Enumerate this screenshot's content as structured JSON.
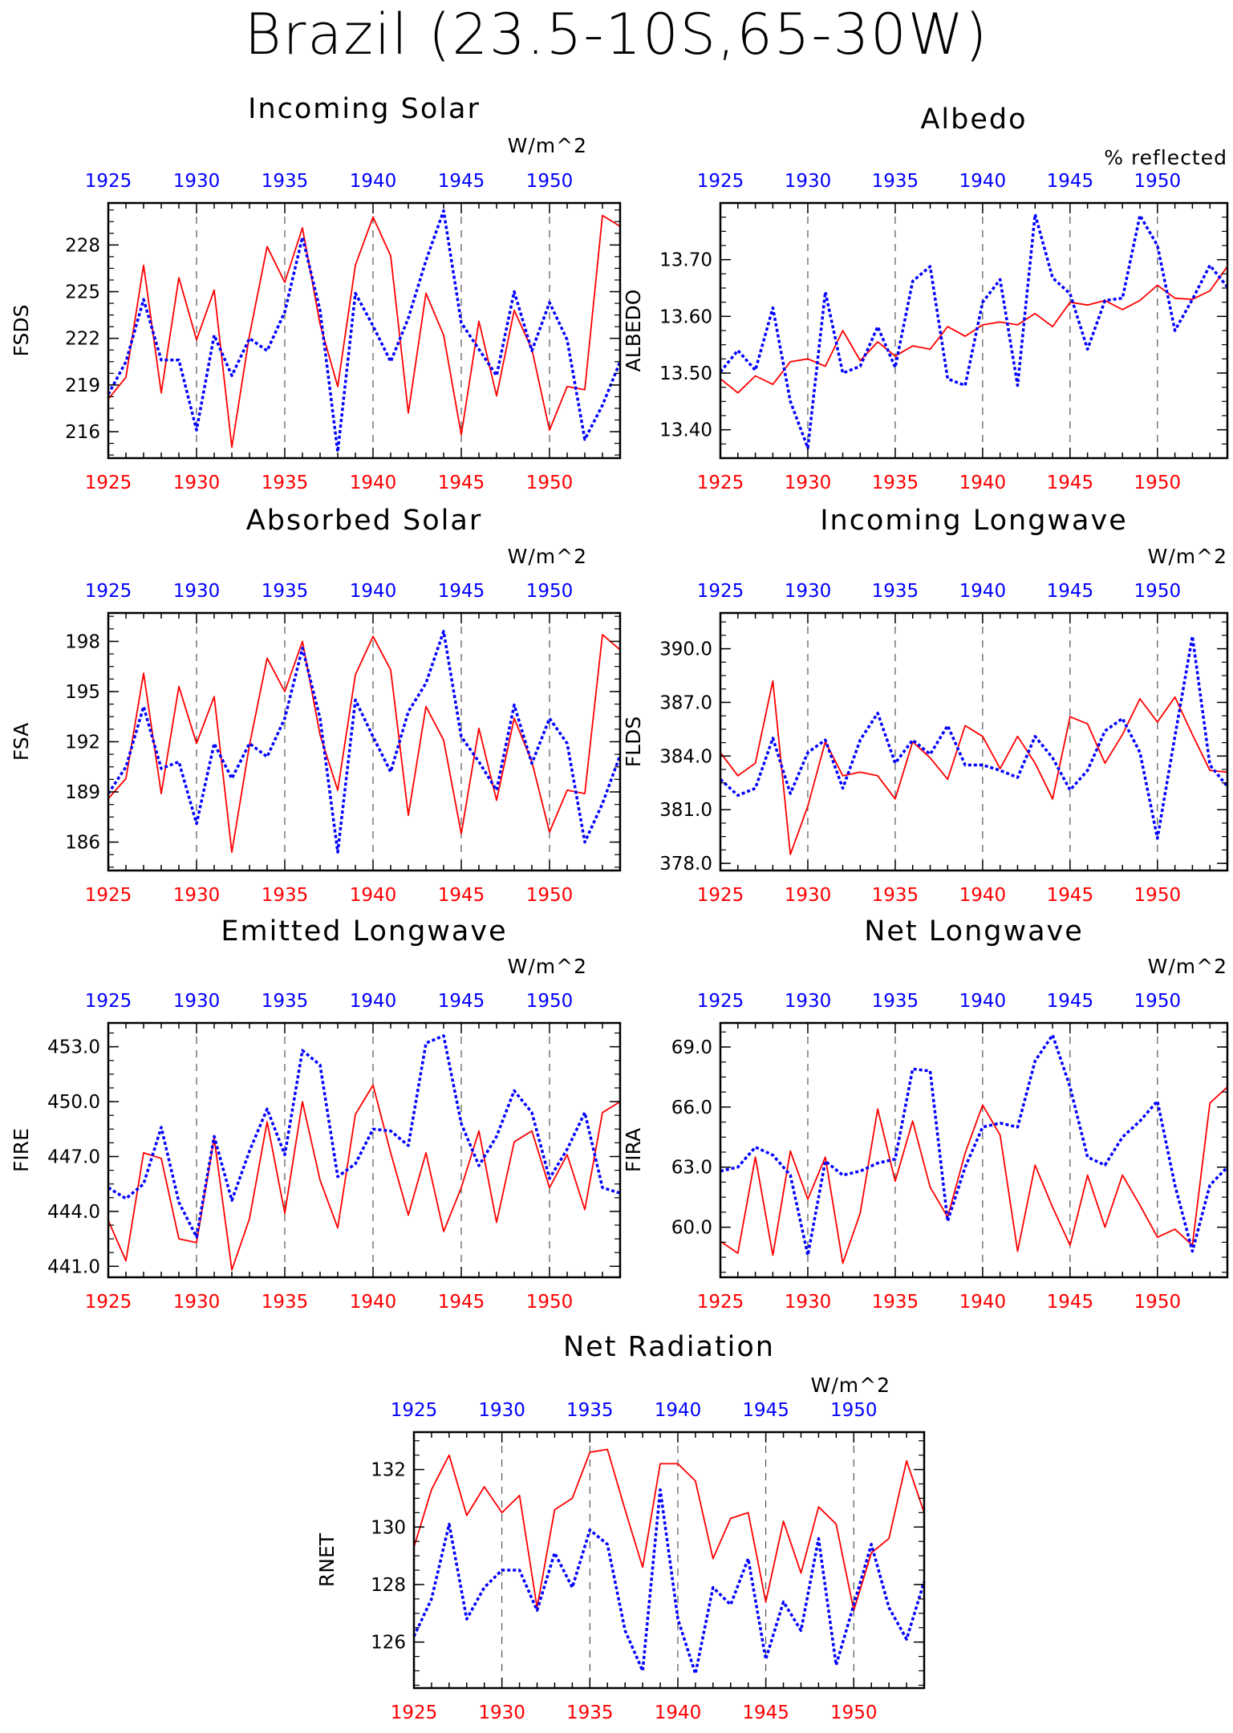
{
  "title": "Brazil (23.5-10S,65-30W)",
  "colors": {
    "series_red": "#ff0000",
    "series_blue": "#0000ff",
    "axis": "#000000"
  },
  "chart_data": [
    {
      "type": "line",
      "title": "Incoming Solar",
      "ylabel": "FSDS",
      "units": "W/m^2",
      "xlim": [
        1925,
        1954
      ],
      "ylim": [
        214.3,
        230.7
      ],
      "yticks": [
        "216",
        "219",
        "222",
        "225",
        "228"
      ],
      "x_red": [
        1925,
        1926,
        1927,
        1928,
        1929,
        1930,
        1931,
        1932,
        1933,
        1934,
        1935,
        1936,
        1937,
        1938,
        1939,
        1940,
        1941,
        1942,
        1943,
        1944,
        1945,
        1946,
        1947,
        1948,
        1949,
        1950,
        1951,
        1952,
        1953,
        1954
      ],
      "x_blue": [
        1925,
        1926,
        1927,
        1928,
        1929,
        1930,
        1931,
        1932,
        1933,
        1934,
        1935,
        1936,
        1937,
        1938,
        1939,
        1940,
        1941,
        1942,
        1943,
        1944,
        1945,
        1946,
        1947,
        1948,
        1949,
        1950,
        1951,
        1952,
        1953,
        1954
      ],
      "series": [
        {
          "values": [
            218.1,
            219.5,
            226.7,
            218.5,
            225.9,
            221.9,
            225.1,
            215.0,
            222.2,
            227.9,
            225.6,
            229.1,
            222.9,
            218.9,
            226.7,
            229.8,
            227.3,
            217.2,
            224.9,
            222.2,
            215.8,
            223.1,
            218.3,
            223.8,
            221.3,
            216.1,
            218.9,
            218.7,
            229.9,
            229.2
          ]
        },
        {
          "values": [
            218.4,
            220.5,
            224.5,
            220.6,
            220.6,
            216.1,
            222.2,
            219.6,
            222.0,
            221.2,
            223.7,
            228.5,
            223.8,
            214.7,
            224.9,
            222.8,
            220.5,
            223.3,
            227.0,
            230.2,
            223.0,
            221.3,
            219.6,
            225.0,
            221.2,
            224.3,
            221.9,
            215.5,
            217.7,
            220.5
          ]
        }
      ]
    },
    {
      "type": "line",
      "title": "Albedo",
      "ylabel": "ALBEDO",
      "units": "% reflected",
      "xlim": [
        1925,
        1954
      ],
      "ylim": [
        13.35,
        13.8
      ],
      "yticks": [
        "13.40",
        "13.50",
        "13.60",
        "13.70"
      ],
      "x_red": [
        1925,
        1926,
        1927,
        1928,
        1929,
        1930,
        1931,
        1932,
        1933,
        1934,
        1935,
        1936,
        1937,
        1938,
        1939,
        1940,
        1941,
        1942,
        1943,
        1944,
        1945,
        1946,
        1947,
        1948,
        1949,
        1950,
        1951,
        1952,
        1953,
        1954
      ],
      "x_blue": [
        1925,
        1926,
        1927,
        1928,
        1929,
        1930,
        1931,
        1932,
        1933,
        1934,
        1935,
        1936,
        1937,
        1938,
        1939,
        1940,
        1941,
        1942,
        1943,
        1944,
        1945,
        1946,
        1947,
        1948,
        1949,
        1950,
        1951,
        1952,
        1953,
        1954
      ],
      "series": [
        {
          "values": [
            13.49,
            13.465,
            13.495,
            13.48,
            13.52,
            13.525,
            13.512,
            13.575,
            13.522,
            13.555,
            13.53,
            13.548,
            13.542,
            13.582,
            13.565,
            13.585,
            13.59,
            13.585,
            13.605,
            13.582,
            13.625,
            13.62,
            13.628,
            13.612,
            13.628,
            13.655,
            13.632,
            13.63,
            13.645,
            13.688
          ]
        },
        {
          "values": [
            13.502,
            13.54,
            13.505,
            13.615,
            13.45,
            13.368,
            13.643,
            13.5,
            13.512,
            13.582,
            13.51,
            13.662,
            13.688,
            13.49,
            13.478,
            13.625,
            13.665,
            13.478,
            13.78,
            13.668,
            13.64,
            13.542,
            13.628,
            13.632,
            13.778,
            13.725,
            13.575,
            13.63,
            13.69,
            13.652
          ]
        }
      ]
    },
    {
      "type": "line",
      "title": "Absorbed Solar",
      "ylabel": "FSA",
      "units": "W/m^2",
      "xlim": [
        1925,
        1954
      ],
      "ylim": [
        184.3,
        199.7
      ],
      "yticks": [
        "186",
        "189",
        "192",
        "195",
        "198"
      ],
      "x_red": [
        1925,
        1926,
        1927,
        1928,
        1929,
        1930,
        1931,
        1932,
        1933,
        1934,
        1935,
        1936,
        1937,
        1938,
        1939,
        1940,
        1941,
        1942,
        1943,
        1944,
        1945,
        1946,
        1947,
        1948,
        1949,
        1950,
        1951,
        1952,
        1953,
        1954
      ],
      "x_blue": [
        1925,
        1926,
        1927,
        1928,
        1929,
        1930,
        1931,
        1932,
        1933,
        1934,
        1935,
        1936,
        1937,
        1938,
        1939,
        1940,
        1941,
        1942,
        1943,
        1944,
        1945,
        1946,
        1947,
        1948,
        1949,
        1950,
        1951,
        1952,
        1953,
        1954
      ],
      "series": [
        {
          "values": [
            188.6,
            189.8,
            196.1,
            188.9,
            195.3,
            191.9,
            194.7,
            185.4,
            191.8,
            197.0,
            195.0,
            198.0,
            192.4,
            189.1,
            196.0,
            198.3,
            196.3,
            187.6,
            194.1,
            192.1,
            186.5,
            192.8,
            188.5,
            193.4,
            190.8,
            186.6,
            189.1,
            188.9,
            198.4,
            197.5
          ]
        },
        {
          "values": [
            188.9,
            190.5,
            194.1,
            190.4,
            190.8,
            187.1,
            191.9,
            189.8,
            191.9,
            191.1,
            193.4,
            197.6,
            193.4,
            185.4,
            194.5,
            192.3,
            190.2,
            193.8,
            195.5,
            198.6,
            192.3,
            190.8,
            189.1,
            194.2,
            190.7,
            193.4,
            191.9,
            186.0,
            188.3,
            191.2
          ]
        }
      ]
    },
    {
      "type": "line",
      "title": "Incoming Longwave",
      "ylabel": "FLDS",
      "units": "W/m^2",
      "xlim": [
        1925,
        1954
      ],
      "ylim": [
        377.6,
        392.0
      ],
      "yticks": [
        "378.0",
        "381.0",
        "384.0",
        "387.0",
        "390.0"
      ],
      "x_red": [
        1925,
        1926,
        1927,
        1928,
        1929,
        1930,
        1931,
        1932,
        1933,
        1934,
        1935,
        1936,
        1937,
        1938,
        1939,
        1940,
        1941,
        1942,
        1943,
        1944,
        1945,
        1946,
        1947,
        1948,
        1949,
        1950,
        1951,
        1952,
        1953,
        1954
      ],
      "x_blue": [
        1925,
        1926,
        1927,
        1928,
        1929,
        1930,
        1931,
        1932,
        1933,
        1934,
        1935,
        1936,
        1937,
        1938,
        1939,
        1940,
        1941,
        1942,
        1943,
        1944,
        1945,
        1946,
        1947,
        1948,
        1949,
        1950,
        1951,
        1952,
        1953,
        1954
      ],
      "series": [
        {
          "values": [
            384.2,
            382.9,
            383.6,
            388.2,
            378.5,
            381.2,
            384.8,
            382.9,
            383.1,
            382.9,
            381.6,
            384.8,
            383.9,
            382.7,
            385.7,
            385.1,
            383.3,
            385.1,
            383.6,
            381.6,
            386.2,
            385.8,
            383.6,
            385.2,
            387.2,
            385.9,
            387.3,
            385.2,
            383.2,
            383.1
          ]
        },
        {
          "values": [
            382.7,
            381.8,
            382.2,
            385.0,
            381.9,
            384.2,
            384.9,
            382.2,
            384.9,
            386.4,
            383.6,
            384.9,
            384.1,
            385.7,
            383.5,
            383.5,
            383.2,
            382.8,
            385.1,
            383.9,
            382.1,
            383.2,
            385.4,
            386.1,
            384.2,
            379.4,
            385.1,
            390.7,
            383.5,
            382.3
          ]
        }
      ]
    },
    {
      "type": "line",
      "title": "Emitted Longwave",
      "ylabel": "FIRE",
      "units": "W/m^2",
      "xlim": [
        1925,
        1954
      ],
      "ylim": [
        440.4,
        454.3
      ],
      "yticks": [
        "441.0",
        "444.0",
        "447.0",
        "450.0",
        "453.0"
      ],
      "x_red": [
        1925,
        1926,
        1927,
        1928,
        1929,
        1930,
        1931,
        1932,
        1933,
        1934,
        1935,
        1936,
        1937,
        1938,
        1939,
        1940,
        1941,
        1942,
        1943,
        1944,
        1945,
        1946,
        1947,
        1948,
        1949,
        1950,
        1951,
        1952,
        1953,
        1954
      ],
      "x_blue": [
        1925,
        1926,
        1927,
        1928,
        1929,
        1930,
        1931,
        1932,
        1933,
        1934,
        1935,
        1936,
        1937,
        1938,
        1939,
        1940,
        1941,
        1942,
        1943,
        1944,
        1945,
        1946,
        1947,
        1948,
        1949,
        1950,
        1951,
        1952,
        1953,
        1954
      ],
      "series": [
        {
          "values": [
            443.5,
            441.3,
            447.2,
            446.9,
            442.5,
            442.3,
            448.0,
            440.8,
            443.6,
            448.9,
            443.9,
            450.0,
            445.7,
            443.1,
            449.3,
            450.9,
            447.2,
            443.8,
            447.2,
            442.9,
            445.3,
            448.4,
            443.4,
            447.8,
            448.4,
            445.3,
            447.1,
            444.1,
            449.4,
            450.0
          ]
        },
        {
          "values": [
            445.3,
            444.7,
            445.5,
            448.6,
            444.5,
            442.6,
            448.1,
            444.6,
            447.3,
            449.6,
            447.1,
            452.8,
            452.0,
            445.9,
            446.6,
            448.5,
            448.4,
            447.6,
            453.2,
            453.6,
            448.8,
            446.5,
            448.1,
            450.6,
            449.4,
            445.8,
            447.4,
            449.4,
            445.3,
            445.0
          ]
        }
      ]
    },
    {
      "type": "line",
      "title": "Net Longwave",
      "ylabel": "FIRA",
      "units": "W/m^2",
      "xlim": [
        1925,
        1954
      ],
      "ylim": [
        57.5,
        70.2
      ],
      "yticks": [
        "60.0",
        "63.0",
        "66.0",
        "69.0"
      ],
      "x_red": [
        1925,
        1926,
        1927,
        1928,
        1929,
        1930,
        1931,
        1932,
        1933,
        1934,
        1935,
        1936,
        1937,
        1938,
        1939,
        1940,
        1941,
        1942,
        1943,
        1944,
        1945,
        1946,
        1947,
        1948,
        1949,
        1950,
        1951,
        1952,
        1953,
        1954
      ],
      "x_blue": [
        1925,
        1926,
        1927,
        1928,
        1929,
        1930,
        1931,
        1932,
        1933,
        1934,
        1935,
        1936,
        1937,
        1938,
        1939,
        1940,
        1941,
        1942,
        1943,
        1944,
        1945,
        1946,
        1947,
        1948,
        1949,
        1950,
        1951,
        1952,
        1953,
        1954
      ],
      "series": [
        {
          "values": [
            59.3,
            58.7,
            63.5,
            58.6,
            63.8,
            61.4,
            63.5,
            58.2,
            60.7,
            65.9,
            62.3,
            65.3,
            62.0,
            60.5,
            63.7,
            66.1,
            64.6,
            58.8,
            63.1,
            61.0,
            59.1,
            62.6,
            60.0,
            62.6,
            61.1,
            59.5,
            59.9,
            59.1,
            66.2,
            67.0
          ]
        },
        {
          "values": [
            62.8,
            63.0,
            64.0,
            63.6,
            62.6,
            58.6,
            63.3,
            62.6,
            62.8,
            63.2,
            63.4,
            67.9,
            67.8,
            60.3,
            63.0,
            65.0,
            65.2,
            65.0,
            68.3,
            69.6,
            67.0,
            63.5,
            63.1,
            64.5,
            65.3,
            66.3,
            62.1,
            58.8,
            62.1,
            63.0
          ]
        }
      ]
    },
    {
      "type": "line",
      "title": "Net Radiation",
      "ylabel": "RNET",
      "units": "W/m^2",
      "xlim": [
        1925,
        1954
      ],
      "ylim": [
        124.4,
        133.3
      ],
      "yticks": [
        "126",
        "128",
        "130",
        "132"
      ],
      "x_red": [
        1925,
        1926,
        1927,
        1928,
        1929,
        1930,
        1931,
        1932,
        1933,
        1934,
        1935,
        1936,
        1937,
        1938,
        1939,
        1940,
        1941,
        1942,
        1943,
        1944,
        1945,
        1946,
        1947,
        1948,
        1949,
        1950,
        1951,
        1952,
        1953,
        1954
      ],
      "x_blue": [
        1925,
        1926,
        1927,
        1928,
        1929,
        1930,
        1931,
        1932,
        1933,
        1934,
        1935,
        1936,
        1937,
        1938,
        1939,
        1940,
        1941,
        1942,
        1943,
        1944,
        1945,
        1946,
        1947,
        1948,
        1949,
        1950,
        1951,
        1952,
        1953,
        1954
      ],
      "series": [
        {
          "values": [
            129.3,
            131.3,
            132.5,
            130.4,
            131.4,
            130.5,
            131.1,
            127.2,
            130.6,
            131.0,
            132.6,
            132.7,
            130.6,
            128.6,
            132.2,
            132.2,
            131.6,
            128.9,
            130.3,
            130.5,
            127.4,
            130.2,
            128.4,
            130.7,
            130.1,
            127.1,
            129.1,
            129.6,
            132.3,
            130.5
          ]
        },
        {
          "values": [
            126.2,
            127.5,
            130.1,
            126.8,
            127.9,
            128.5,
            128.5,
            127.1,
            129.1,
            127.9,
            129.9,
            129.4,
            126.4,
            125.0,
            131.3,
            126.8,
            124.9,
            127.9,
            127.3,
            128.9,
            125.4,
            127.4,
            126.4,
            129.6,
            125.2,
            127.3,
            129.4,
            127.2,
            126.1,
            128.1
          ]
        }
      ]
    }
  ],
  "x_axis": {
    "tick_years": [
      1925,
      1930,
      1935,
      1940,
      1945,
      1950
    ],
    "tick_labels": [
      "1925",
      "1930",
      "1935",
      "1940",
      "1945",
      "1950"
    ]
  }
}
